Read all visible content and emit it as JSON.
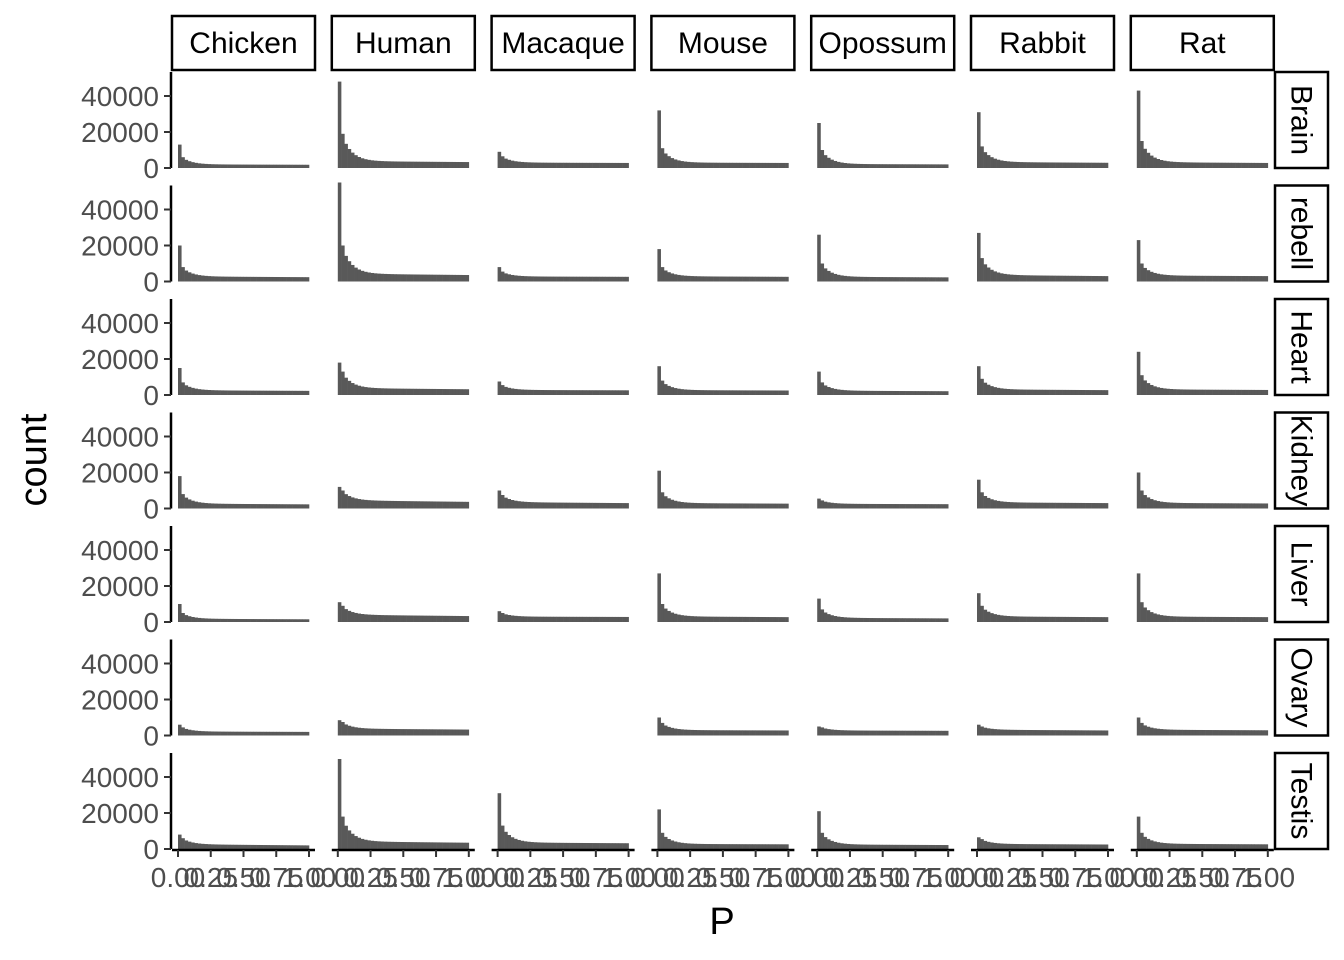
{
  "chart_data": {
    "type": "bar",
    "subtype": "faceted histogram (facet_grid, tissue ~ species)",
    "xlabel": "P",
    "ylabel": "count",
    "xlim": [
      0,
      1
    ],
    "ylim": [
      0,
      50000
    ],
    "x_tick_labels": [
      "0.00",
      "0.25",
      "0.50",
      "0.75",
      "1.00"
    ],
    "y_ticks": [
      0,
      20000,
      40000
    ],
    "y_tick_labels": [
      "0",
      "20000",
      "40000"
    ],
    "grid": false,
    "bar_color": "#595959",
    "strip_border_color": "#000000",
    "bin_count": 40,
    "columns": [
      "Chicken",
      "Human",
      "Macaque",
      "Mouse",
      "Opossum",
      "Rabbit",
      "Rat"
    ],
    "rows": [
      "Brain",
      "Cerebellum",
      "Heart",
      "Kidney",
      "Liver",
      "Ovary",
      "Testis"
    ],
    "row_label_overrides": {
      "Cerebellum": "rebell"
    },
    "note_first_bin_then_tail": "each panel: counts per P-bin summarised as [first-bin count, second-bin count, tail level at P≈0.5, tail level at P≈1.0]",
    "panels": [
      {
        "row": "Brain",
        "col": "Chicken",
        "profile": [
          13000,
          6000,
          2000,
          1800
        ]
      },
      {
        "row": "Brain",
        "col": "Human",
        "profile": [
          48000,
          19000,
          3800,
          3300
        ]
      },
      {
        "row": "Brain",
        "col": "Macaque",
        "profile": [
          9000,
          6500,
          3000,
          2800
        ]
      },
      {
        "row": "Brain",
        "col": "Mouse",
        "profile": [
          32000,
          11000,
          3000,
          2800
        ]
      },
      {
        "row": "Brain",
        "col": "Opossum",
        "profile": [
          25000,
          10000,
          2200,
          2000
        ]
      },
      {
        "row": "Brain",
        "col": "Rabbit",
        "profile": [
          31000,
          12000,
          3300,
          2900
        ]
      },
      {
        "row": "Brain",
        "col": "Rat",
        "profile": [
          43000,
          15000,
          3200,
          2800
        ]
      },
      {
        "row": "Cerebellum",
        "col": "Chicken",
        "profile": [
          20000,
          8000,
          2800,
          2400
        ]
      },
      {
        "row": "Cerebellum",
        "col": "Human",
        "profile": [
          55000,
          20000,
          4300,
          3600
        ]
      },
      {
        "row": "Cerebellum",
        "col": "Macaque",
        "profile": [
          8000,
          5500,
          2800,
          2600
        ]
      },
      {
        "row": "Cerebellum",
        "col": "Mouse",
        "profile": [
          18000,
          8000,
          2900,
          2600
        ]
      },
      {
        "row": "Cerebellum",
        "col": "Opossum",
        "profile": [
          26000,
          10000,
          2600,
          2300
        ]
      },
      {
        "row": "Cerebellum",
        "col": "Rabbit",
        "profile": [
          27000,
          13000,
          3600,
          3000
        ]
      },
      {
        "row": "Cerebellum",
        "col": "Rat",
        "profile": [
          23000,
          10000,
          3300,
          3000
        ]
      },
      {
        "row": "Heart",
        "col": "Chicken",
        "profile": [
          15000,
          7000,
          2600,
          2300
        ]
      },
      {
        "row": "Heart",
        "col": "Human",
        "profile": [
          18000,
          13000,
          3800,
          3200
        ]
      },
      {
        "row": "Heart",
        "col": "Macaque",
        "profile": [
          7500,
          5500,
          2800,
          2600
        ]
      },
      {
        "row": "Heart",
        "col": "Mouse",
        "profile": [
          16000,
          8000,
          2700,
          2500
        ]
      },
      {
        "row": "Heart",
        "col": "Opossum",
        "profile": [
          13000,
          7000,
          2400,
          2100
        ]
      },
      {
        "row": "Heart",
        "col": "Rabbit",
        "profile": [
          16000,
          9000,
          3100,
          2700
        ]
      },
      {
        "row": "Heart",
        "col": "Rat",
        "profile": [
          24000,
          11000,
          3100,
          2800
        ]
      },
      {
        "row": "Kidney",
        "col": "Chicken",
        "profile": [
          18000,
          8000,
          2700,
          2300
        ]
      },
      {
        "row": "Kidney",
        "col": "Human",
        "profile": [
          12000,
          10000,
          4500,
          3700
        ]
      },
      {
        "row": "Kidney",
        "col": "Macaque",
        "profile": [
          10000,
          7500,
          3500,
          3000
        ]
      },
      {
        "row": "Kidney",
        "col": "Mouse",
        "profile": [
          21000,
          9000,
          3000,
          2700
        ]
      },
      {
        "row": "Kidney",
        "col": "Opossum",
        "profile": [
          5500,
          4500,
          2600,
          2400
        ]
      },
      {
        "row": "Kidney",
        "col": "Rabbit",
        "profile": [
          16000,
          9000,
          3400,
          3000
        ]
      },
      {
        "row": "Kidney",
        "col": "Rat",
        "profile": [
          20000,
          10000,
          3100,
          2800
        ]
      },
      {
        "row": "Liver",
        "col": "Chicken",
        "profile": [
          10000,
          5000,
          1800,
          1500
        ]
      },
      {
        "row": "Liver",
        "col": "Human",
        "profile": [
          11000,
          9000,
          4000,
          3300
        ]
      },
      {
        "row": "Liver",
        "col": "Macaque",
        "profile": [
          6000,
          5000,
          3000,
          2800
        ]
      },
      {
        "row": "Liver",
        "col": "Mouse",
        "profile": [
          27000,
          10000,
          3100,
          2700
        ]
      },
      {
        "row": "Liver",
        "col": "Opossum",
        "profile": [
          13000,
          7000,
          2300,
          2000
        ]
      },
      {
        "row": "Liver",
        "col": "Rabbit",
        "profile": [
          16000,
          9000,
          3100,
          2700
        ]
      },
      {
        "row": "Liver",
        "col": "Rat",
        "profile": [
          27000,
          11000,
          3000,
          2700
        ]
      },
      {
        "row": "Ovary",
        "col": "Chicken",
        "profile": [
          6000,
          4500,
          2200,
          2000
        ]
      },
      {
        "row": "Ovary",
        "col": "Human",
        "profile": [
          8500,
          7500,
          3800,
          3300
        ]
      },
      {
        "row": "Ovary",
        "col": "Mouse",
        "profile": [
          10000,
          7000,
          3000,
          2800
        ]
      },
      {
        "row": "Ovary",
        "col": "Opossum",
        "profile": [
          5000,
          4500,
          2800,
          2600
        ]
      },
      {
        "row": "Ovary",
        "col": "Rabbit",
        "profile": [
          6000,
          5000,
          3200,
          2800
        ]
      },
      {
        "row": "Ovary",
        "col": "Rat",
        "profile": [
          10000,
          7000,
          3200,
          2900
        ]
      },
      {
        "row": "Testis",
        "col": "Chicken",
        "profile": [
          8000,
          6000,
          2600,
          2000
        ]
      },
      {
        "row": "Testis",
        "col": "Human",
        "profile": [
          50000,
          18000,
          4200,
          3500
        ]
      },
      {
        "row": "Testis",
        "col": "Macaque",
        "profile": [
          31000,
          13000,
          3600,
          3200
        ]
      },
      {
        "row": "Testis",
        "col": "Mouse",
        "profile": [
          22000,
          9000,
          2800,
          2600
        ]
      },
      {
        "row": "Testis",
        "col": "Opossum",
        "profile": [
          21000,
          9000,
          2500,
          2200
        ]
      },
      {
        "row": "Testis",
        "col": "Rabbit",
        "profile": [
          6500,
          5500,
          2800,
          2500
        ]
      },
      {
        "row": "Testis",
        "col": "Rat",
        "profile": [
          18000,
          9000,
          2900,
          2600
        ]
      }
    ]
  }
}
